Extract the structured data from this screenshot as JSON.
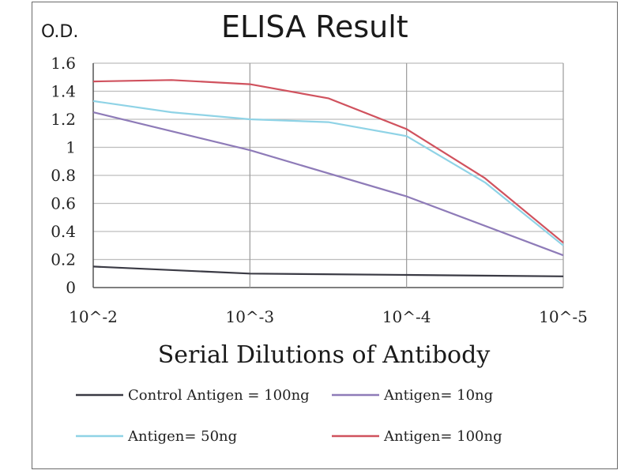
{
  "chart_data": {
    "type": "line",
    "title": "ELISA Result",
    "ylabel": "O.D.",
    "xlabel": "Serial Dilutions of Antibody",
    "x_ticks": [
      "10^-2",
      "10^-3",
      "10^-4",
      "10^-5"
    ],
    "y_ticks": [
      "0",
      "0.2",
      "0.4",
      "0.6",
      "0.8",
      "1",
      "1.2",
      "1.4",
      "1.6"
    ],
    "ylim": [
      0,
      1.6
    ],
    "x_log_exponent_range": [
      -2,
      -5
    ],
    "grid": true,
    "legend_position": "bottom",
    "series": [
      {
        "name": "Control Antigen = 100ng",
        "color": "#3a3a44",
        "x": [
          0.01,
          0.001,
          0.0001,
          1e-05
        ],
        "y": [
          0.15,
          0.1,
          0.09,
          0.08
        ]
      },
      {
        "name": "Antigen= 10ng",
        "color": "#8e7bb8",
        "x": [
          0.01,
          0.001,
          0.0001,
          1e-05
        ],
        "y": [
          1.25,
          0.98,
          0.65,
          0.23
        ]
      },
      {
        "name": "Antigen= 50ng",
        "color": "#8fd3e6",
        "x": [
          0.01,
          0.003162,
          0.001,
          0.000316,
          0.0001,
          3.16e-05,
          1e-05
        ],
        "y": [
          1.33,
          1.25,
          1.2,
          1.18,
          1.08,
          0.75,
          0.3
        ]
      },
      {
        "name": "Antigen= 100ng",
        "color": "#d0525e",
        "x": [
          0.01,
          0.003162,
          0.001,
          0.000316,
          0.0001,
          3.16e-05,
          1e-05
        ],
        "y": [
          1.47,
          1.48,
          1.45,
          1.35,
          1.13,
          0.78,
          0.32
        ]
      }
    ]
  }
}
